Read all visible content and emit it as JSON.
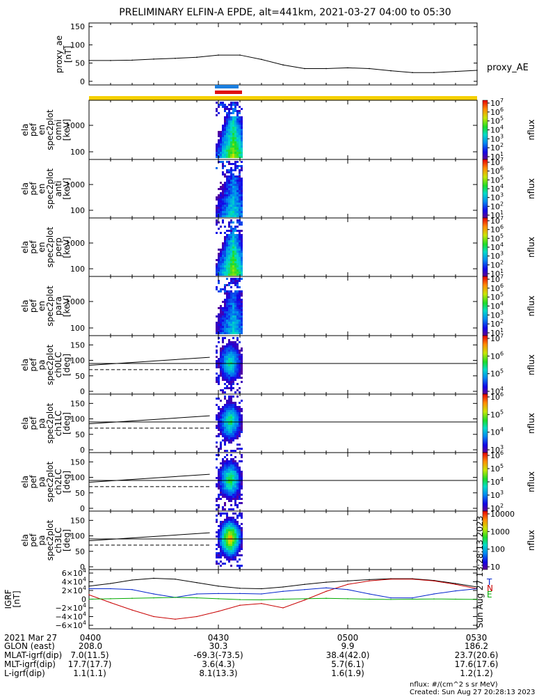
{
  "title": "PRELIMINARY ELFIN-A EPDE, alt=441km, 2021-03-27 04:00 to 05:30",
  "chart_data": [
    {
      "type": "line",
      "panel": "proxy_ae",
      "ylabel": [
        "proxy_ae",
        "[nT]"
      ],
      "series_label": "proxy_AE",
      "ylim": [
        -10,
        160
      ],
      "yticks": [
        "150",
        "100",
        "50",
        "0"
      ],
      "x": [
        0,
        5,
        10,
        15,
        20,
        25,
        30,
        35,
        40,
        45,
        50,
        55,
        60,
        65,
        70,
        75,
        80,
        85,
        90
      ],
      "values": [
        57,
        57,
        58,
        61,
        63,
        66,
        72,
        72,
        60,
        45,
        35,
        35,
        37,
        35,
        29,
        24,
        24,
        27,
        30
      ]
    },
    {
      "type": "heatmap",
      "panel": "omni",
      "ylabel": [
        "ela",
        "pef",
        "en",
        "spec2plot",
        "omni",
        "[keV]"
      ],
      "yticks": [
        "1000",
        "100"
      ],
      "zlabel": "nflux",
      "zticks": [
        "10^7",
        "10^6",
        "10^5",
        "10^4",
        "10^3",
        "10^2",
        "10^1"
      ]
    },
    {
      "type": "heatmap",
      "panel": "anti",
      "ylabel": [
        "ela",
        "pef",
        "en",
        "spec2plot",
        "anti",
        "[keV]"
      ],
      "yticks": [
        "1000",
        "100"
      ],
      "zlabel": "nflux",
      "zticks": [
        "10^7",
        "10^6",
        "10^5",
        "10^4",
        "10^3",
        "10^2",
        "10^1"
      ]
    },
    {
      "type": "heatmap",
      "panel": "perp",
      "ylabel": [
        "ela",
        "pef",
        "en",
        "spec2plot",
        "perp",
        "[keV]"
      ],
      "yticks": [
        "1000",
        "100"
      ],
      "zlabel": "nflux",
      "zticks": [
        "10^7",
        "10^6",
        "10^5",
        "10^4",
        "10^3",
        "10^2",
        "10^1"
      ]
    },
    {
      "type": "heatmap",
      "panel": "para",
      "ylabel": [
        "ela",
        "pef",
        "en",
        "spec2plot",
        "para",
        "[keV]"
      ],
      "yticks": [
        "1000",
        "100"
      ],
      "zlabel": "nflux",
      "zticks": [
        "10^7",
        "10^6",
        "10^5",
        "10^4",
        "10^3",
        "10^2",
        "10^1"
      ]
    },
    {
      "type": "heatmap",
      "panel": "ch0LC",
      "ylabel": [
        "ela",
        "pef",
        "pa",
        "spec2plot",
        "ch0LC",
        "[deg]"
      ],
      "yticks": [
        "150",
        "100",
        "50",
        "0"
      ],
      "zlabel": "nflux",
      "zticks": [
        "10^7",
        "10^6",
        "10^5",
        "10^4"
      ]
    },
    {
      "type": "heatmap",
      "panel": "ch1LC",
      "ylabel": [
        "ela",
        "pef",
        "pa",
        "spec2plot",
        "ch1LC",
        "[deg]"
      ],
      "yticks": [
        "150",
        "100",
        "50",
        "0"
      ],
      "zlabel": "nflux",
      "zticks": [
        "10^6",
        "10^5",
        "10^4",
        "10^3"
      ]
    },
    {
      "type": "heatmap",
      "panel": "ch2LC",
      "ylabel": [
        "ela",
        "pef",
        "pa",
        "spec2plot",
        "ch2LC",
        "[deg]"
      ],
      "yticks": [
        "150",
        "100",
        "50",
        "0"
      ],
      "zlabel": "nflux",
      "zticks": [
        "10^6",
        "10^5",
        "10^4",
        "10^3",
        "10^2"
      ]
    },
    {
      "type": "heatmap",
      "panel": "ch3LC",
      "ylabel": [
        "ela",
        "pef",
        "pa",
        "spec2plot",
        "ch3LC",
        "[deg]"
      ],
      "yticks": [
        "150",
        "100",
        "50",
        "0"
      ],
      "zlabel": "nflux",
      "zticks": [
        "10000",
        "1000",
        "100",
        "10"
      ]
    },
    {
      "type": "line",
      "panel": "IGRF",
      "ylabel": [
        "IGRF",
        "[nT]"
      ],
      "yticks": [
        "6×10^4",
        "4×10^4",
        "2×10^4",
        "0",
        "−2×10^4",
        "−4×10^4",
        "−6×10^4"
      ],
      "ylim": [
        -60000,
        60000
      ],
      "x": [
        0,
        5,
        10,
        15,
        20,
        25,
        30,
        35,
        40,
        45,
        50,
        55,
        60,
        65,
        70,
        75,
        80,
        85,
        90
      ],
      "series": [
        {
          "name": "",
          "color": "#000000",
          "values": [
            30000,
            36000,
            44000,
            48000,
            46000,
            38000,
            30000,
            25000,
            24000,
            28000,
            34000,
            39000,
            42000,
            45000,
            47000,
            47000,
            43000,
            36000,
            28000
          ]
        },
        {
          "name": "N",
          "color": "#c80000",
          "values": [
            10000,
            -8000,
            -25000,
            -40000,
            -46000,
            -40000,
            -28000,
            -14000,
            -10000,
            -20000,
            -2000,
            18000,
            34000,
            42000,
            46000,
            46000,
            42000,
            34000,
            24000
          ]
        },
        {
          "name": "",
          "color": "#0022cc",
          "values": [
            24000,
            24000,
            22000,
            12000,
            4000,
            12000,
            13000,
            13000,
            12000,
            18000,
            22000,
            26000,
            22000,
            12000,
            3000,
            3000,
            12000,
            19000,
            24000
          ]
        },
        {
          "name": "E",
          "color": "#00aa00",
          "values": [
            0,
            1000,
            2000,
            3000,
            4000,
            3000,
            1000,
            -1000,
            -1500,
            0,
            1000,
            2000,
            1000,
            0,
            -500,
            0,
            500,
            0,
            -500
          ]
        }
      ],
      "legend": [
        "T",
        "N",
        "E"
      ]
    }
  ],
  "bars": {
    "colors": [
      "#1a7fe0",
      "#e01010",
      "#f6d000"
    ]
  },
  "xaxis": {
    "rows": [
      {
        "label": "2021 Mar 27",
        "values": [
          "0400",
          "0430",
          "0500",
          "0530"
        ]
      },
      {
        "label": "GLON (east)",
        "values": [
          "208.0",
          "30.3",
          "9.9",
          "186.2"
        ]
      },
      {
        "label": "MLAT-igrf(dip)",
        "values": [
          "7.0(11.5)",
          "-69.3(-73.5)",
          "38.4(42.0)",
          "23.7(20.6)"
        ]
      },
      {
        "label": "MLT-igrf(dip)",
        "values": [
          "17.7(17.7)",
          "3.6(4.3)",
          "5.7(6.1)",
          "17.6(17.6)"
        ]
      },
      {
        "label": "L-igrf(dip)",
        "values": [
          "1.1(1.1)",
          "8.1(13.3)",
          "1.6(1.9)",
          "1.2(1.2)"
        ]
      }
    ]
  },
  "footer": {
    "units": "nflux: #/(cm^2 s sr MeV)",
    "created": "Created: Sun Aug 27 20:28:13 2023",
    "side_stamp": "Sun Aug 27 13:28:13 2023"
  }
}
